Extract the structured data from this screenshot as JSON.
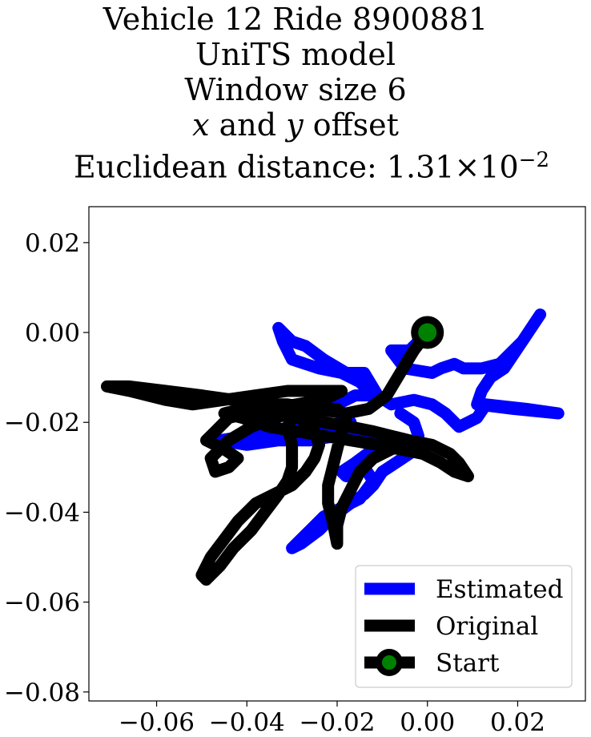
{
  "title": {
    "line1": "Vehicle 12 Ride 8900881",
    "line2": "UniTS model",
    "line3": "Window size 6",
    "line4_x": "x",
    "line4_and": " and ",
    "line4_y": "y",
    "line4_rest": " offset",
    "line5_prefix": "Euclidean distance: ",
    "line5_mantissa": "1.31",
    "line5_times": "×",
    "line5_base": "10",
    "line5_exp": "−2"
  },
  "chart_data": {
    "type": "line",
    "xlim": [
      -0.075,
      0.035
    ],
    "ylim": [
      -0.082,
      0.028
    ],
    "xticks": [
      -0.06,
      -0.04,
      -0.02,
      0.0,
      0.02
    ],
    "xtick_labels": [
      "−0.06",
      "−0.04",
      "−0.02",
      "0.00",
      "0.02"
    ],
    "yticks": [
      0.02,
      0.0,
      -0.02,
      -0.04,
      -0.06,
      -0.08
    ],
    "ytick_labels": [
      "0.02",
      "0.00",
      "−0.02",
      "−0.04",
      "−0.06",
      "−0.08"
    ],
    "grid": false,
    "legend": {
      "placement": "lower-right",
      "entries": [
        {
          "label": "Estimated",
          "color": "#0000ff",
          "marker": false
        },
        {
          "label": "Original",
          "color": "#000000",
          "marker": false
        },
        {
          "label": "Start",
          "color": "#000000",
          "marker": true,
          "marker_face": "#008000"
        }
      ]
    },
    "series": [
      {
        "name": "Estimated",
        "color": "#0000ff",
        "points": [
          [
            0.0,
            0.0
          ],
          [
            -0.004,
            -0.004
          ],
          [
            -0.008,
            -0.004
          ],
          [
            -0.005,
            -0.008
          ],
          [
            0.001,
            -0.009
          ],
          [
            0.003,
            -0.008
          ],
          [
            0.006,
            -0.007
          ],
          [
            0.008,
            -0.008
          ],
          [
            0.012,
            -0.008
          ],
          [
            0.016,
            -0.007
          ],
          [
            0.021,
            -0.002
          ],
          [
            0.025,
            0.004
          ],
          [
            0.021,
            -0.002
          ],
          [
            0.017,
            -0.008
          ],
          [
            0.014,
            -0.01
          ],
          [
            0.012,
            -0.013
          ],
          [
            0.011,
            -0.016
          ],
          [
            0.019,
            -0.017
          ],
          [
            0.029,
            -0.018
          ],
          [
            0.022,
            -0.017
          ],
          [
            0.013,
            -0.016
          ],
          [
            0.011,
            -0.019
          ],
          [
            0.007,
            -0.021
          ],
          [
            0.004,
            -0.018
          ],
          [
            0.001,
            -0.016
          ],
          [
            -0.003,
            -0.015
          ],
          [
            -0.008,
            -0.016
          ],
          [
            -0.011,
            -0.014
          ],
          [
            -0.014,
            -0.009
          ],
          [
            -0.018,
            -0.009
          ],
          [
            -0.023,
            -0.006
          ],
          [
            -0.027,
            -0.003
          ],
          [
            -0.03,
            -0.002
          ],
          [
            -0.033,
            0.001
          ],
          [
            -0.032,
            -0.002
          ],
          [
            -0.03,
            -0.006
          ],
          [
            -0.024,
            -0.008
          ],
          [
            -0.019,
            -0.009
          ],
          [
            -0.015,
            -0.011
          ],
          [
            -0.012,
            -0.014
          ],
          [
            -0.016,
            -0.014
          ],
          [
            -0.02,
            -0.016
          ],
          [
            -0.019,
            -0.019
          ],
          [
            -0.017,
            -0.02
          ],
          [
            -0.02,
            -0.021
          ],
          [
            -0.025,
            -0.02
          ],
          [
            -0.03,
            -0.021
          ],
          [
            -0.035,
            -0.022
          ],
          [
            -0.04,
            -0.023
          ],
          [
            -0.046,
            -0.024
          ],
          [
            -0.04,
            -0.025
          ],
          [
            -0.033,
            -0.024
          ],
          [
            -0.026,
            -0.024
          ],
          [
            -0.02,
            -0.023
          ],
          [
            -0.014,
            -0.022
          ],
          [
            -0.01,
            -0.024
          ],
          [
            -0.012,
            -0.026
          ],
          [
            -0.016,
            -0.029
          ],
          [
            -0.019,
            -0.031
          ],
          [
            -0.018,
            -0.032
          ],
          [
            -0.014,
            -0.03
          ],
          [
            -0.012,
            -0.033
          ],
          [
            -0.015,
            -0.037
          ],
          [
            -0.019,
            -0.039
          ],
          [
            -0.023,
            -0.041
          ],
          [
            -0.026,
            -0.044
          ],
          [
            -0.028,
            -0.046
          ],
          [
            -0.03,
            -0.048
          ],
          [
            -0.028,
            -0.047
          ],
          [
            -0.024,
            -0.044
          ],
          [
            -0.021,
            -0.041
          ],
          [
            -0.017,
            -0.038
          ],
          [
            -0.014,
            -0.036
          ],
          [
            -0.012,
            -0.034
          ],
          [
            -0.01,
            -0.031
          ],
          [
            -0.007,
            -0.029
          ],
          [
            -0.004,
            -0.027
          ],
          [
            -0.002,
            -0.023
          ],
          [
            -0.003,
            -0.02
          ],
          [
            -0.006,
            -0.018
          ]
        ]
      },
      {
        "name": "Original",
        "color": "#000000",
        "points": [
          [
            0.0,
            0.0
          ],
          [
            -0.003,
            -0.004
          ],
          [
            -0.006,
            -0.009
          ],
          [
            -0.009,
            -0.014
          ],
          [
            -0.013,
            -0.017
          ],
          [
            -0.018,
            -0.018
          ],
          [
            -0.025,
            -0.017
          ],
          [
            -0.031,
            -0.016
          ],
          [
            -0.037,
            -0.016
          ],
          [
            -0.043,
            -0.015
          ],
          [
            -0.05,
            -0.014
          ],
          [
            -0.058,
            -0.013
          ],
          [
            -0.066,
            -0.012
          ],
          [
            -0.071,
            -0.012
          ],
          [
            -0.066,
            -0.013
          ],
          [
            -0.058,
            -0.015
          ],
          [
            -0.052,
            -0.016
          ],
          [
            -0.045,
            -0.015
          ],
          [
            -0.038,
            -0.014
          ],
          [
            -0.031,
            -0.013
          ],
          [
            -0.024,
            -0.013
          ],
          [
            -0.019,
            -0.013
          ],
          [
            -0.023,
            -0.015
          ],
          [
            -0.029,
            -0.016
          ],
          [
            -0.035,
            -0.017
          ],
          [
            -0.04,
            -0.018
          ],
          [
            -0.044,
            -0.019
          ],
          [
            -0.047,
            -0.022
          ],
          [
            -0.049,
            -0.024
          ],
          [
            -0.045,
            -0.026
          ],
          [
            -0.042,
            -0.028
          ],
          [
            -0.044,
            -0.03
          ],
          [
            -0.047,
            -0.031
          ],
          [
            -0.048,
            -0.028
          ],
          [
            -0.044,
            -0.024
          ],
          [
            -0.039,
            -0.021
          ],
          [
            -0.034,
            -0.019
          ],
          [
            -0.03,
            -0.018
          ],
          [
            -0.027,
            -0.02
          ],
          [
            -0.025,
            -0.022
          ],
          [
            -0.024,
            -0.025
          ],
          [
            -0.025,
            -0.028
          ],
          [
            -0.027,
            -0.031
          ],
          [
            -0.03,
            -0.034
          ],
          [
            -0.034,
            -0.036
          ],
          [
            -0.038,
            -0.038
          ],
          [
            -0.042,
            -0.042
          ],
          [
            -0.045,
            -0.046
          ],
          [
            -0.048,
            -0.05
          ],
          [
            -0.05,
            -0.054
          ],
          [
            -0.049,
            -0.055
          ],
          [
            -0.046,
            -0.052
          ],
          [
            -0.043,
            -0.048
          ],
          [
            -0.039,
            -0.044
          ],
          [
            -0.036,
            -0.04
          ],
          [
            -0.033,
            -0.036
          ],
          [
            -0.031,
            -0.033
          ],
          [
            -0.03,
            -0.03
          ],
          [
            -0.03,
            -0.028
          ],
          [
            -0.03,
            -0.025
          ],
          [
            -0.031,
            -0.021
          ],
          [
            -0.03,
            -0.019
          ],
          [
            -0.027,
            -0.018
          ],
          [
            -0.023,
            -0.017
          ],
          [
            -0.02,
            -0.017
          ],
          [
            -0.018,
            -0.019
          ],
          [
            -0.019,
            -0.022
          ],
          [
            -0.02,
            -0.026
          ],
          [
            -0.021,
            -0.03
          ],
          [
            -0.022,
            -0.034
          ],
          [
            -0.022,
            -0.038
          ],
          [
            -0.021,
            -0.042
          ],
          [
            -0.02,
            -0.047
          ],
          [
            -0.02,
            -0.043
          ],
          [
            -0.019,
            -0.039
          ],
          [
            -0.017,
            -0.035
          ],
          [
            -0.015,
            -0.031
          ],
          [
            -0.012,
            -0.028
          ],
          [
            -0.008,
            -0.026
          ],
          [
            -0.004,
            -0.024
          ],
          [
            0.001,
            -0.025
          ],
          [
            0.005,
            -0.027
          ],
          [
            0.007,
            -0.029
          ],
          [
            0.009,
            -0.032
          ],
          [
            0.006,
            -0.031
          ],
          [
            0.003,
            -0.029
          ],
          [
            -0.001,
            -0.027
          ],
          [
            -0.006,
            -0.026
          ],
          [
            -0.011,
            -0.025
          ],
          [
            -0.017,
            -0.024
          ],
          [
            -0.023,
            -0.023
          ],
          [
            -0.029,
            -0.022
          ],
          [
            -0.035,
            -0.021
          ],
          [
            -0.041,
            -0.019
          ],
          [
            -0.045,
            -0.018
          ],
          [
            -0.041,
            -0.017
          ],
          [
            -0.035,
            -0.018
          ],
          [
            -0.029,
            -0.019
          ],
          [
            -0.023,
            -0.02
          ],
          [
            -0.017,
            -0.021
          ],
          [
            -0.012,
            -0.022
          ],
          [
            -0.008,
            -0.023
          ],
          [
            -0.004,
            -0.024
          ],
          [
            -0.002,
            -0.026
          ]
        ]
      }
    ],
    "start_point": {
      "x": 0.0,
      "y": 0.0,
      "label": "Start",
      "marker_color": "#008000",
      "edge_color": "#000000"
    }
  }
}
